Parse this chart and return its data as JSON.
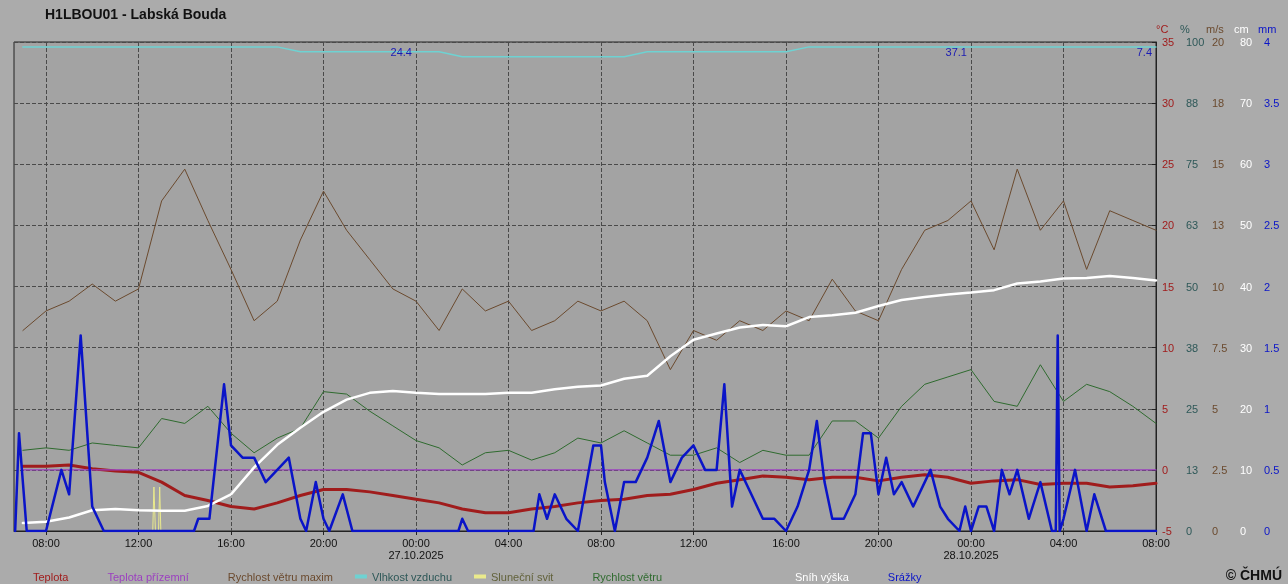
{
  "chart_data": [
    {
      "type": "line",
      "title": "H1LBOU01 - Labská Bouda",
      "ylabel": "°C",
      "y2label": "%",
      "y3label": "m/s",
      "xlim": [
        "2025-10-26T06:37",
        "2025-10-28T08:00"
      ],
      "xticks": [
        {
          "value": "2025-10-26T08:00",
          "label": "08:00"
        },
        {
          "value": "2025-10-26T12:00",
          "label": "12:00"
        },
        {
          "value": "2025-10-26T16:00",
          "label": "16:00"
        },
        {
          "value": "2025-10-26T20:00",
          "label": "20:00"
        },
        {
          "value": "2025-10-27T00:00",
          "label": "00:00\n27.10.2025"
        },
        {
          "value": "2025-10-27T04:00",
          "label": "04:00"
        },
        {
          "value": "2025-10-27T08:00",
          "label": "08:00"
        },
        {
          "value": "2025-10-27T12:00",
          "label": "12:00"
        },
        {
          "value": "2025-10-27T16:00",
          "label": "16:00"
        },
        {
          "value": "2025-10-27T20:00",
          "label": "20:00"
        },
        {
          "value": "2025-10-28T00:00",
          "label": "00:00\n28.10.2025"
        },
        {
          "value": "2025-10-28T04:00",
          "label": "04:00"
        },
        {
          "value": "2025-10-28T08:00",
          "label": "08:00"
        }
      ],
      "ylim": [
        -5,
        35
      ],
      "yticks": [
        -5,
        0,
        5,
        10,
        15,
        20,
        25,
        30,
        35
      ],
      "y2lim": [
        0,
        100
      ],
      "y2ticks": [
        0,
        {
          "value": 12.5,
          "label": "13"
        },
        25,
        {
          "value": 37.5,
          "label": "38"
        },
        50,
        {
          "value": 62.5,
          "label": "63"
        },
        75,
        {
          "value": 87.5,
          "label": "88"
        },
        100
      ],
      "y3lim": [
        0,
        20
      ],
      "y3ticks": [
        0,
        2.5,
        5,
        7.5,
        10,
        {
          "value": 12.5,
          "label": "13"
        },
        15,
        {
          "value": 17.5,
          "label": "18"
        },
        20
      ],
      "grid": true,
      "legend": "bottom",
      "marker": "none",
      "line_style": "solid",
      "x": [
        "2025-10-26T07:00",
        "2025-10-26T08:00",
        "2025-10-26T09:00",
        "2025-10-26T10:00",
        "2025-10-26T11:00",
        "2025-10-26T12:00",
        "2025-10-26T13:00",
        "2025-10-26T14:00",
        "2025-10-26T15:00",
        "2025-10-26T16:00",
        "2025-10-26T17:00",
        "2025-10-26T18:00",
        "2025-10-26T19:00",
        "2025-10-26T20:00",
        "2025-10-26T21:00",
        "2025-10-26T22:00",
        "2025-10-26T23:00",
        "2025-10-27T00:00",
        "2025-10-27T01:00",
        "2025-10-27T02:00",
        "2025-10-27T03:00",
        "2025-10-27T04:00",
        "2025-10-27T05:00",
        "2025-10-27T06:00",
        "2025-10-27T07:00",
        "2025-10-27T08:00",
        "2025-10-27T09:00",
        "2025-10-27T10:00",
        "2025-10-27T11:00",
        "2025-10-27T12:00",
        "2025-10-27T13:00",
        "2025-10-27T14:00",
        "2025-10-27T15:00",
        "2025-10-27T16:00",
        "2025-10-27T17:00",
        "2025-10-27T18:00",
        "2025-10-27T19:00",
        "2025-10-27T20:00",
        "2025-10-27T21:00",
        "2025-10-27T22:00",
        "2025-10-27T23:00",
        "2025-10-28T00:00",
        "2025-10-28T01:00",
        "2025-10-28T02:00",
        "2025-10-28T03:00",
        "2025-10-28T04:00",
        "2025-10-28T05:00",
        "2025-10-28T06:00",
        "2025-10-28T07:00",
        "2025-10-28T08:00"
      ],
      "series": [
        {
          "name": "Teplota",
          "color": "#a01c1c",
          "values": [
            0.3,
            0.3,
            0.4,
            0.1,
            -0.1,
            -0.2,
            -1.0,
            -2.1,
            -2.5,
            -3.0,
            -3.2,
            -2.7,
            -2.1,
            -1.6,
            -1.6,
            -1.8,
            -2.1,
            -2.4,
            -2.7,
            -3.2,
            -3.5,
            -3.5,
            -3.2,
            -3.0,
            -2.7,
            -2.5,
            -2.4,
            -2.1,
            -2.0,
            -1.6,
            -1.1,
            -0.8,
            -0.5,
            -0.6,
            -0.8,
            -0.6,
            -0.6,
            -0.9,
            -0.6,
            -0.4,
            -0.6,
            -1.1,
            -0.9,
            -0.8,
            -1.2,
            -1.1,
            -1.1,
            -1.4,
            -1.3,
            -1.1
          ]
        },
        {
          "name": "Teplota přízemní",
          "color": "#9b3fc0",
          "values": [
            0,
            0,
            0,
            0,
            0,
            0,
            0,
            0,
            0,
            0,
            0,
            0,
            0,
            0,
            0,
            0,
            0,
            0,
            0,
            0,
            0,
            0,
            0,
            0,
            0,
            0,
            0,
            0,
            0,
            0,
            0,
            0,
            0,
            0,
            0,
            0,
            0,
            0,
            0,
            0,
            0,
            0,
            0,
            0,
            0,
            0,
            0,
            0,
            0,
            0
          ]
        },
        {
          "name": "Rychlost větru maxim",
          "color": "#6b4a2e",
          "axis": "y3",
          "values": [
            8.2,
            9.0,
            9.4,
            10.1,
            9.4,
            9.9,
            13.5,
            14.8,
            12.7,
            10.7,
            8.6,
            9.4,
            11.9,
            13.9,
            12.3,
            11.1,
            9.9,
            9.4,
            8.2,
            9.9,
            9.0,
            9.4,
            8.2,
            8.6,
            9.4,
            9.0,
            9.4,
            8.6,
            6.6,
            8.2,
            7.8,
            8.6,
            8.2,
            9.0,
            8.6,
            10.3,
            9.0,
            8.6,
            10.7,
            12.3,
            12.7,
            13.5,
            11.5,
            14.8,
            12.3,
            13.5,
            10.7,
            13.1,
            12.7,
            12.3
          ]
        },
        {
          "name": "Vlhkost vzduchu",
          "color": "#6ed2d2",
          "axis": "y2",
          "values": [
            99,
            99,
            99,
            99,
            99,
            99,
            99,
            99,
            99,
            99,
            99,
            99,
            98,
            98,
            98,
            98,
            98,
            98,
            98,
            97,
            97,
            97,
            97,
            97,
            97,
            97,
            97,
            98,
            98,
            98,
            98,
            98,
            98,
            98,
            99,
            99,
            99,
            99,
            99,
            99,
            99,
            99,
            99,
            99,
            99,
            99,
            99,
            99,
            99,
            99
          ]
        },
        {
          "name": "Sluneční svit",
          "color": "#eaea8c",
          "axis": "y2",
          "x": [
            "2025-10-26T12:30",
            "2025-10-26T12:37",
            "2025-10-26T12:40",
            "2025-10-26T12:44",
            "2025-10-26T12:52",
            "2025-10-26T12:55",
            "2025-10-26T12:58",
            "2025-10-26T13:05"
          ],
          "values": [
            0,
            0,
            9,
            0,
            0,
            9,
            0,
            0
          ]
        },
        {
          "name": "Rychlost větru",
          "color": "#2f6b2f",
          "axis": "y3",
          "values": [
            3.3,
            3.4,
            3.3,
            3.6,
            3.5,
            3.4,
            4.6,
            4.4,
            5.1,
            4.0,
            3.2,
            3.8,
            4.2,
            5.7,
            5.6,
            4.9,
            4.3,
            3.7,
            3.4,
            2.7,
            3.2,
            3.3,
            2.9,
            3.2,
            3.8,
            3.6,
            4.1,
            3.6,
            3.1,
            3.1,
            3.4,
            2.8,
            3.3,
            3.1,
            3.1,
            4.5,
            4.5,
            3.8,
            5.1,
            6.0,
            6.3,
            6.6,
            5.3,
            5.1,
            6.8,
            5.3,
            6.0,
            5.7,
            5.1,
            4.4
          ]
        }
      ],
      "annotations": [
        "24.4",
        "37.1",
        "7.4",
        "© ČHMÚ"
      ]
    },
    {
      "type": "line",
      "ylabel": "cm",
      "y2label": "mm",
      "xlim": [
        "2025-10-26T06:37",
        "2025-10-28T08:00"
      ],
      "xticks": [
        {
          "value": "2025-10-26T08:00",
          "label": null
        },
        {
          "value": "2025-10-26T12:00",
          "label": null
        },
        {
          "value": "2025-10-26T16:00",
          "label": null
        },
        {
          "value": "2025-10-26T20:00",
          "label": null
        },
        {
          "value": "2025-10-27T00:00",
          "label": null
        },
        {
          "value": "2025-10-27T04:00",
          "label": null
        },
        {
          "value": "2025-10-27T08:00",
          "label": null
        },
        {
          "value": "2025-10-27T12:00",
          "label": null
        },
        {
          "value": "2025-10-27T16:00",
          "label": null
        },
        {
          "value": "2025-10-27T20:00",
          "label": null
        },
        {
          "value": "2025-10-28T00:00",
          "label": null
        },
        {
          "value": "2025-10-28T04:00",
          "label": null
        },
        {
          "value": "2025-10-28T08:00",
          "label": null
        }
      ],
      "ylim": [
        0,
        80
      ],
      "yticks": [
        0,
        10,
        20,
        30,
        40,
        50,
        60,
        70,
        80
      ],
      "y2lim": [
        0,
        4
      ],
      "y2ticks": [
        0,
        0.5,
        1,
        1.5,
        2,
        2.5,
        3,
        3.5,
        4
      ],
      "tick_labels": "y",
      "legend": "bottom",
      "marker": "none",
      "line_style": "solid",
      "x": [
        "2025-10-26T07:00",
        "2025-10-26T08:00",
        "2025-10-26T09:00",
        "2025-10-26T10:00",
        "2025-10-26T11:00",
        "2025-10-26T12:00",
        "2025-10-26T13:00",
        "2025-10-26T14:00",
        "2025-10-26T15:00",
        "2025-10-26T16:00",
        "2025-10-26T17:00",
        "2025-10-26T18:00",
        "2025-10-26T19:00",
        "2025-10-26T20:00",
        "2025-10-26T21:00",
        "2025-10-26T22:00",
        "2025-10-26T23:00",
        "2025-10-27T00:00",
        "2025-10-27T01:00",
        "2025-10-27T02:00",
        "2025-10-27T03:00",
        "2025-10-27T04:00",
        "2025-10-27T05:00",
        "2025-10-27T06:00",
        "2025-10-27T07:00",
        "2025-10-27T08:00",
        "2025-10-27T09:00",
        "2025-10-27T10:00",
        "2025-10-27T11:00",
        "2025-10-27T12:00",
        "2025-10-27T13:00",
        "2025-10-27T14:00",
        "2025-10-27T15:00",
        "2025-10-27T16:00",
        "2025-10-27T17:00",
        "2025-10-27T18:00",
        "2025-10-27T19:00",
        "2025-10-27T20:00",
        "2025-10-27T21:00",
        "2025-10-27T22:00",
        "2025-10-27T23:00",
        "2025-10-28T00:00",
        "2025-10-28T01:00",
        "2025-10-28T02:00",
        "2025-10-28T03:00",
        "2025-10-28T04:00",
        "2025-10-28T05:00",
        "2025-10-28T06:00",
        "2025-10-28T07:00",
        "2025-10-28T08:00"
      ],
      "series": [
        {
          "name": "Sníh výška",
          "color": "#ffffff",
          "values": [
            1.3,
            1.5,
            2.2,
            3.4,
            3.6,
            3.4,
            3.3,
            3.3,
            4.1,
            6.0,
            10.4,
            14.1,
            16.9,
            19.5,
            21.5,
            22.6,
            22.9,
            22.6,
            22.4,
            22.4,
            22.4,
            22.6,
            22.6,
            23.2,
            23.6,
            23.8,
            24.9,
            25.4,
            28.6,
            31.3,
            32.3,
            33.3,
            33.7,
            33.5,
            35.0,
            35.3,
            35.7,
            36.8,
            37.8,
            38.3,
            38.7,
            39.0,
            39.4,
            40.5,
            40.8,
            41.3,
            41.4,
            41.7,
            41.4,
            41.0
          ]
        },
        {
          "name": "Srážky",
          "color": "#0a14c8",
          "axis": "y2",
          "x": [
            "2025-10-26T06:40",
            "2025-10-26T06:50",
            "2025-10-26T07:10",
            "2025-10-26T07:30",
            "2025-10-26T08:00",
            "2025-10-26T08:40",
            "2025-10-26T09:00",
            "2025-10-26T09:30",
            "2025-10-26T10:00",
            "2025-10-26T10:30",
            "2025-10-26T14:24",
            "2025-10-26T14:35",
            "2025-10-26T15:04",
            "2025-10-26T15:42",
            "2025-10-26T16:00",
            "2025-10-26T16:30",
            "2025-10-26T17:00",
            "2025-10-26T17:30",
            "2025-10-26T18:00",
            "2025-10-26T18:30",
            "2025-10-26T19:00",
            "2025-10-26T19:15",
            "2025-10-26T19:40",
            "2025-10-26T20:00",
            "2025-10-26T20:15",
            "2025-10-26T20:50",
            "2025-10-26T21:15",
            "2025-10-27T01:50",
            "2025-10-27T02:00",
            "2025-10-27T02:15",
            "2025-10-27T05:05",
            "2025-10-27T05:20",
            "2025-10-27T05:40",
            "2025-10-27T06:00",
            "2025-10-27T06:30",
            "2025-10-27T07:00",
            "2025-10-27T07:40",
            "2025-10-27T08:00",
            "2025-10-27T08:10",
            "2025-10-27T08:36",
            "2025-10-27T09:00",
            "2025-10-27T09:30",
            "2025-10-27T10:00",
            "2025-10-27T10:30",
            "2025-10-27T11:00",
            "2025-10-27T11:30",
            "2025-10-27T12:00",
            "2025-10-27T12:30",
            "2025-10-27T13:00",
            "2025-10-27T13:20",
            "2025-10-27T13:40",
            "2025-10-27T14:00",
            "2025-10-27T14:30",
            "2025-10-27T15:00",
            "2025-10-27T15:30",
            "2025-10-27T16:00",
            "2025-10-27T16:30",
            "2025-10-27T17:00",
            "2025-10-27T17:20",
            "2025-10-27T17:40",
            "2025-10-27T18:00",
            "2025-10-27T18:30",
            "2025-10-27T19:00",
            "2025-10-27T19:20",
            "2025-10-27T19:40",
            "2025-10-27T20:00",
            "2025-10-27T20:20",
            "2025-10-27T20:40",
            "2025-10-27T21:00",
            "2025-10-27T21:30",
            "2025-10-27T22:00",
            "2025-10-27T22:15",
            "2025-10-27T22:40",
            "2025-10-27T23:00",
            "2025-10-27T23:30",
            "2025-10-27T23:45",
            "2025-10-28T00:00",
            "2025-10-28T00:20",
            "2025-10-28T00:40",
            "2025-10-28T01:00",
            "2025-10-28T01:20",
            "2025-10-28T01:40",
            "2025-10-28T02:00",
            "2025-10-28T02:30",
            "2025-10-28T03:00",
            "2025-10-28T03:30",
            "2025-10-28T03:40",
            "2025-10-28T03:45",
            "2025-10-28T03:50",
            "2025-10-28T04:00",
            "2025-10-28T04:30",
            "2025-10-28T05:00",
            "2025-10-28T05:20",
            "2025-10-28T05:50",
            "2025-10-28T08:00"
          ],
          "values": [
            0,
            0.8,
            0,
            0,
            0,
            0.5,
            0.3,
            1.6,
            0.2,
            0,
            0,
            0.1,
            0.1,
            1.2,
            0.7,
            0.6,
            0.6,
            0.4,
            0.5,
            0.6,
            0.1,
            0,
            0.4,
            0.1,
            0,
            0.3,
            0,
            0,
            0.1,
            0,
            0,
            0.3,
            0.1,
            0.3,
            0.1,
            0,
            0.7,
            0.7,
            0.4,
            0,
            0.4,
            0.4,
            0.6,
            0.9,
            0.4,
            0.6,
            0.7,
            0.5,
            0.5,
            1.2,
            0.2,
            0.5,
            0.3,
            0.1,
            0.1,
            0,
            0.2,
            0.5,
            0.9,
            0.4,
            0.1,
            0.1,
            0.3,
            0.8,
            0.8,
            0.3,
            0.6,
            0.3,
            0.4,
            0.2,
            0.4,
            0.5,
            0.2,
            0.1,
            0,
            0.2,
            0,
            0.2,
            0.2,
            0,
            0.5,
            0.3,
            0.5,
            0.1,
            0.4,
            0,
            0,
            1.6,
            0,
            0.1,
            0.5,
            0,
            0.3,
            0,
            0
          ]
        }
      ]
    }
  ]
}
